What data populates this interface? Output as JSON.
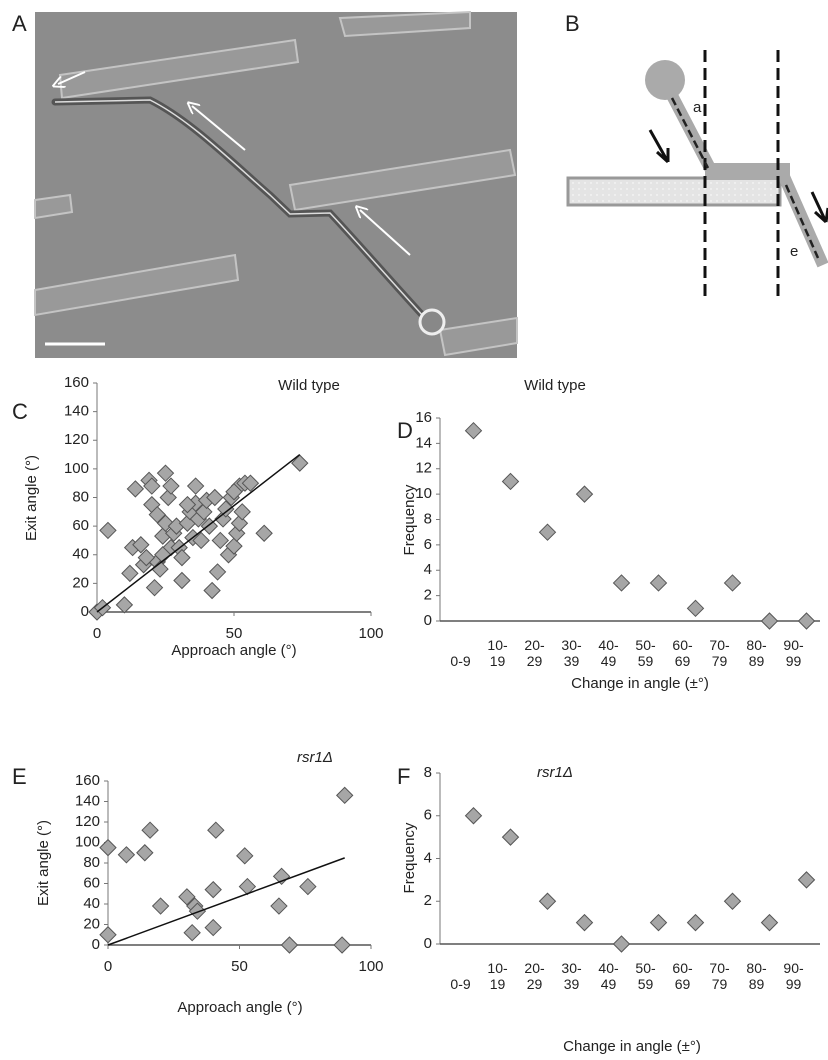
{
  "panel_labels": [
    "A",
    "B",
    "C",
    "D",
    "E",
    "F"
  ],
  "diagram": {
    "labels": [
      "a",
      "e"
    ]
  },
  "chart_data": [
    {
      "type": "scatter",
      "title": "Wild type",
      "xlabel": "Approach angle (°)",
      "ylabel": "Exit angle (°)",
      "x": [
        0,
        2,
        4,
        10,
        12,
        13,
        14,
        16,
        17,
        19,
        20,
        20,
        21,
        22,
        22,
        23,
        24,
        25,
        25,
        26,
        27,
        27,
        28,
        29,
        30,
        31,
        31,
        33,
        34,
        35,
        36,
        36,
        37,
        38,
        39,
        40,
        41,
        42,
        43,
        44,
        45,
        46,
        47,
        48,
        49,
        50,
        51,
        52,
        52,
        53,
        54,
        56,
        61,
        74,
        50,
        33,
        24,
        18
      ],
      "values": [
        0,
        3,
        57,
        5,
        27,
        45,
        86,
        47,
        33,
        92,
        88,
        75,
        17,
        35,
        68,
        30,
        53,
        97,
        62,
        80,
        45,
        88,
        55,
        60,
        45,
        22,
        38,
        62,
        70,
        52,
        88,
        76,
        65,
        50,
        70,
        78,
        60,
        15,
        80,
        28,
        50,
        65,
        72,
        40,
        80,
        46,
        55,
        88,
        62,
        70,
        90,
        90,
        55,
        104,
        84,
        75,
        40,
        38
      ],
      "xlim": [
        0,
        100
      ],
      "ylim": [
        0,
        160
      ],
      "xticks": [
        0,
        50,
        100
      ],
      "yticks": [
        0,
        20,
        40,
        60,
        80,
        100,
        120,
        140,
        160
      ],
      "color": "#a6a6a6",
      "trendline": {
        "x": [
          0,
          74
        ],
        "y": [
          0,
          110
        ]
      },
      "title_italic": false
    },
    {
      "type": "dot",
      "title": "Wild type",
      "xlabel": "Change in angle (±°)",
      "ylabel": "Frequency",
      "categories": [
        "0-9",
        "10-19",
        "20-29",
        "30-39",
        "40-49",
        "50-59",
        "60-69",
        "70-79",
        "80-89",
        "90-99"
      ],
      "values": [
        15,
        11,
        7,
        10,
        3,
        3,
        1,
        3,
        0,
        0
      ],
      "ylim": [
        0,
        16
      ],
      "yticks": [
        0,
        2,
        4,
        6,
        8,
        10,
        12,
        14,
        16
      ],
      "color": "#a6a6a6",
      "title_italic": false
    },
    {
      "type": "scatter",
      "title": "rsr1Δ",
      "xlabel": "Approach angle (°)",
      "ylabel": "Exit angle (°)",
      "x": [
        0,
        0,
        7,
        14,
        16,
        20,
        30,
        32,
        33,
        34,
        40,
        40,
        41,
        52,
        53,
        65,
        66,
        69,
        76,
        89,
        90
      ],
      "values": [
        95,
        10,
        88,
        90,
        112,
        38,
        47,
        12,
        38,
        33,
        17,
        54,
        112,
        87,
        57,
        38,
        67,
        0,
        57,
        0,
        146
      ],
      "xlim": [
        0,
        100
      ],
      "ylim": [
        0,
        160
      ],
      "xticks": [
        0,
        50,
        100
      ],
      "yticks": [
        0,
        20,
        40,
        60,
        80,
        100,
        120,
        140,
        160
      ],
      "color": "#a6a6a6",
      "trendline": {
        "x": [
          0,
          90
        ],
        "y": [
          0,
          85
        ]
      },
      "title_italic": true
    },
    {
      "type": "dot",
      "title": "rsr1Δ",
      "xlabel": "Change in angle (±°)",
      "ylabel": "Frequency",
      "categories": [
        "0-9",
        "10-19",
        "20-29",
        "30-39",
        "40-49",
        "50-59",
        "60-69",
        "70-79",
        "80-89",
        "90-99"
      ],
      "values": [
        6,
        5,
        2,
        1,
        0,
        1,
        1,
        2,
        1,
        3
      ],
      "ylim": [
        0,
        8
      ],
      "yticks": [
        0,
        2,
        4,
        6,
        8
      ],
      "color": "#a6a6a6",
      "title_italic": true
    }
  ]
}
